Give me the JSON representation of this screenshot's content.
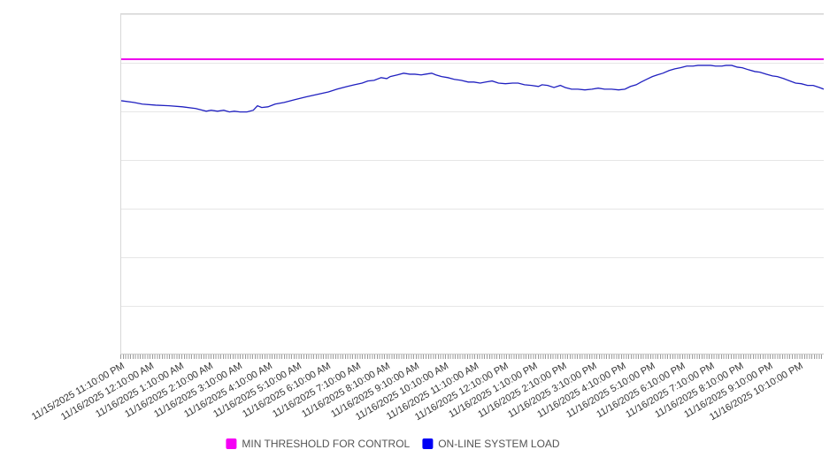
{
  "chart_data": {
    "type": "line",
    "title": "",
    "xlabel": "",
    "ylabel": "",
    "grid": "horizontal",
    "legend_position": "bottom-center",
    "y_axis": {
      "labels_visible": false,
      "ylim": [
        0,
        100
      ]
    },
    "x_axis": {
      "tick_labels": [
        "11/15/2025 11:10:00 PM",
        "11/16/2025 12:10:00 AM",
        "11/16/2025 1:10:00 AM",
        "11/16/2025 2:10:00 AM",
        "11/16/2025 3:10:00 AM",
        "11/16/2025 4:10:00 AM",
        "11/16/2025 5:10:00 AM",
        "11/16/2025 6:10:00 AM",
        "11/16/2025 7:10:00 AM",
        "11/16/2025 8:10:00 AM",
        "11/16/2025 9:10:00 AM",
        "11/16/2025 10:10:00 AM",
        "11/16/2025 11:10:00 AM",
        "11/16/2025 12:10:00 PM",
        "11/16/2025 1:10:00 PM",
        "11/16/2025 2:10:00 PM",
        "11/16/2025 3:10:00 PM",
        "11/16/2025 4:10:00 PM",
        "11/16/2025 5:10:00 PM",
        "11/16/2025 6:10:00 PM",
        "11/16/2025 7:10:00 PM",
        "11/16/2025 8:10:00 PM",
        "11/16/2025 9:10:00 PM",
        "11/16/2025 10:10:00 PM"
      ]
    },
    "series": [
      {
        "name": "MIN THRESHOLD FOR CONTROL",
        "type": "constant-threshold",
        "value": 86.8,
        "color": "#ee00ee"
      },
      {
        "name": "ON-LINE SYSTEM LOAD",
        "type": "line",
        "color": "#2020c0",
        "points": [
          [
            0.0,
            74.5
          ],
          [
            0.018,
            74.0
          ],
          [
            0.03,
            73.5
          ],
          [
            0.049,
            73.2
          ],
          [
            0.068,
            73.0
          ],
          [
            0.087,
            72.7
          ],
          [
            0.106,
            72.2
          ],
          [
            0.121,
            71.4
          ],
          [
            0.128,
            71.7
          ],
          [
            0.137,
            71.4
          ],
          [
            0.146,
            71.7
          ],
          [
            0.154,
            71.2
          ],
          [
            0.161,
            71.4
          ],
          [
            0.169,
            71.2
          ],
          [
            0.179,
            71.2
          ],
          [
            0.188,
            71.7
          ],
          [
            0.194,
            73.0
          ],
          [
            0.2,
            72.5
          ],
          [
            0.209,
            72.7
          ],
          [
            0.219,
            73.5
          ],
          [
            0.232,
            74.0
          ],
          [
            0.247,
            74.8
          ],
          [
            0.263,
            75.6
          ],
          [
            0.28,
            76.4
          ],
          [
            0.295,
            77.1
          ],
          [
            0.307,
            77.9
          ],
          [
            0.322,
            78.7
          ],
          [
            0.332,
            79.2
          ],
          [
            0.343,
            79.7
          ],
          [
            0.351,
            80.3
          ],
          [
            0.36,
            80.5
          ],
          [
            0.37,
            81.3
          ],
          [
            0.378,
            81.0
          ],
          [
            0.383,
            81.6
          ],
          [
            0.393,
            82.1
          ],
          [
            0.402,
            82.6
          ],
          [
            0.411,
            82.3
          ],
          [
            0.418,
            82.3
          ],
          [
            0.427,
            82.1
          ],
          [
            0.433,
            82.3
          ],
          [
            0.442,
            82.6
          ],
          [
            0.448,
            82.1
          ],
          [
            0.456,
            81.6
          ],
          [
            0.465,
            81.3
          ],
          [
            0.474,
            80.8
          ],
          [
            0.484,
            80.5
          ],
          [
            0.494,
            80.0
          ],
          [
            0.502,
            80.0
          ],
          [
            0.511,
            79.7
          ],
          [
            0.519,
            80.0
          ],
          [
            0.528,
            80.3
          ],
          [
            0.537,
            79.7
          ],
          [
            0.547,
            79.5
          ],
          [
            0.557,
            79.7
          ],
          [
            0.565,
            79.7
          ],
          [
            0.574,
            79.2
          ],
          [
            0.584,
            79.0
          ],
          [
            0.594,
            78.7
          ],
          [
            0.599,
            79.2
          ],
          [
            0.607,
            79.0
          ],
          [
            0.616,
            78.4
          ],
          [
            0.625,
            79.0
          ],
          [
            0.632,
            78.4
          ],
          [
            0.641,
            77.9
          ],
          [
            0.65,
            77.9
          ],
          [
            0.66,
            77.7
          ],
          [
            0.67,
            77.9
          ],
          [
            0.679,
            78.2
          ],
          [
            0.688,
            77.9
          ],
          [
            0.698,
            77.9
          ],
          [
            0.708,
            77.7
          ],
          [
            0.717,
            77.9
          ],
          [
            0.725,
            78.7
          ],
          [
            0.733,
            79.2
          ],
          [
            0.74,
            80.0
          ],
          [
            0.748,
            80.8
          ],
          [
            0.756,
            81.6
          ],
          [
            0.763,
            82.1
          ],
          [
            0.771,
            82.6
          ],
          [
            0.78,
            83.4
          ],
          [
            0.788,
            83.9
          ],
          [
            0.796,
            84.2
          ],
          [
            0.805,
            84.7
          ],
          [
            0.814,
            84.7
          ],
          [
            0.821,
            84.9
          ],
          [
            0.83,
            84.9
          ],
          [
            0.839,
            84.9
          ],
          [
            0.846,
            84.7
          ],
          [
            0.855,
            84.7
          ],
          [
            0.861,
            84.9
          ],
          [
            0.869,
            84.9
          ],
          [
            0.877,
            84.4
          ],
          [
            0.884,
            84.2
          ],
          [
            0.893,
            83.6
          ],
          [
            0.902,
            83.1
          ],
          [
            0.909,
            82.9
          ],
          [
            0.918,
            82.3
          ],
          [
            0.927,
            81.8
          ],
          [
            0.934,
            81.6
          ],
          [
            0.943,
            81.0
          ],
          [
            0.952,
            80.3
          ],
          [
            0.96,
            79.7
          ],
          [
            0.968,
            79.5
          ],
          [
            0.977,
            79.0
          ],
          [
            0.985,
            79.0
          ],
          [
            0.994,
            78.4
          ],
          [
            1.0,
            77.9
          ]
        ]
      }
    ]
  },
  "legend": {
    "items": [
      {
        "label": "MIN THRESHOLD FOR CONTROL",
        "color": "#f500f5"
      },
      {
        "label": "ON-LINE SYSTEM LOAD",
        "color": "#0000f5"
      }
    ]
  }
}
